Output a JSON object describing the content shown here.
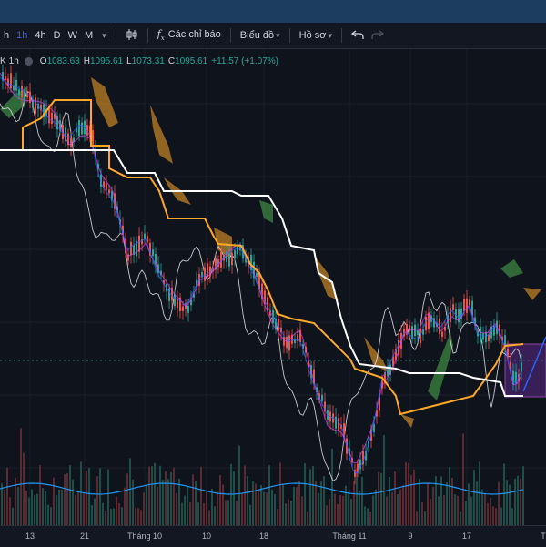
{
  "toolbar": {
    "intervals": [
      "h",
      "1h",
      "4h",
      "D",
      "W",
      "M"
    ],
    "active_interval": "1h",
    "interval_menu_icon": "chevron-down-icon",
    "chart_type_icon": "candlestick-icon",
    "indicators_icon": "function-icon",
    "indicators_label": "Các chỉ báo",
    "chart_label": "Biểu đồ",
    "profile_label": "Hồ sơ",
    "undo_icon": "undo-icon",
    "redo_icon": "redo-icon"
  },
  "legend": {
    "symbol": "K",
    "timeframe": "1h",
    "open_label": "O",
    "open": "1083.63",
    "high_label": "H",
    "high": "1095.61",
    "low_label": "L",
    "low": "1073.31",
    "close_label": "C",
    "close": "1095.61",
    "change": "+11.57 (+1.07%)"
  },
  "x_axis": {
    "labels": [
      "13",
      "21",
      "Tháng 10",
      "10",
      "18",
      "Tháng 11",
      "9",
      "17",
      "T"
    ]
  },
  "colors": {
    "up": "#26a69a",
    "down": "#ef5350",
    "accent": "#2962ff",
    "tenkan": "#e040fb",
    "kijun": "#ffa726",
    "ref_line": "#ffffff",
    "cloud_green": "#4caf50",
    "cloud_orange": "#ffa726"
  }
}
